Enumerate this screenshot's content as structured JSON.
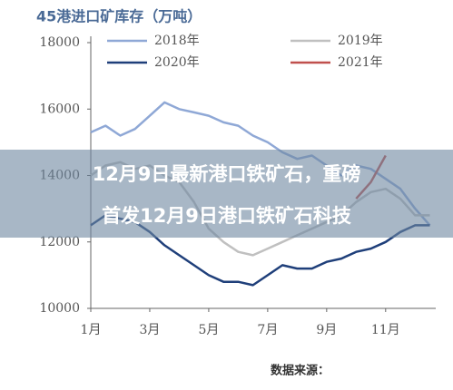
{
  "chart_data": {
    "type": "line",
    "title": "45港进口矿库存（万吨）",
    "x": [
      1,
      1.5,
      2,
      2.5,
      3,
      3.5,
      4,
      4.5,
      5,
      5.5,
      6,
      6.5,
      7,
      7.5,
      8,
      8.5,
      9,
      9.5,
      10,
      10.5,
      11,
      11.5,
      12,
      12.5
    ],
    "series": [
      {
        "name": "2018年",
        "color": "#8fa8d6",
        "values": [
          15300,
          15500,
          15200,
          15400,
          15800,
          16200,
          16000,
          15900,
          15800,
          15600,
          15500,
          15200,
          15000,
          14700,
          14500,
          14600,
          14300,
          14000,
          14300,
          14200,
          13900,
          13600,
          13000,
          12500
        ]
      },
      {
        "name": "2019年",
        "color": "#c0c0c0",
        "values": [
          14000,
          14300,
          14400,
          14200,
          14300,
          14000,
          13800,
          13200,
          12400,
          12000,
          11700,
          11600,
          11800,
          12000,
          12200,
          12400,
          12600,
          12800,
          13200,
          13500,
          13600,
          13300,
          12800,
          12800
        ]
      },
      {
        "name": "2020年",
        "color": "#1f3f7a",
        "values": [
          12500,
          12800,
          12700,
          12600,
          12300,
          11900,
          11600,
          11300,
          11000,
          10800,
          10800,
          10700,
          11000,
          11300,
          11200,
          11200,
          11400,
          11500,
          11700,
          11800,
          12000,
          12300,
          12500,
          12500
        ]
      },
      {
        "name": "2021年",
        "color": "#c0504d",
        "values": [
          null,
          null,
          null,
          null,
          null,
          null,
          null,
          null,
          null,
          null,
          null,
          null,
          null,
          null,
          null,
          null,
          null,
          null,
          13300,
          13800,
          14600,
          null,
          null,
          null
        ]
      }
    ],
    "xlim": [
      1,
      12.7
    ],
    "xticks": [
      {
        "value": 1,
        "label": "1月"
      },
      {
        "value": 3,
        "label": "3月"
      },
      {
        "value": 5,
        "label": "5月"
      },
      {
        "value": 7,
        "label": "7月"
      },
      {
        "value": 9,
        "label": "9月"
      },
      {
        "value": 11,
        "label": "11月"
      }
    ],
    "ylim": [
      10000,
      18000
    ],
    "yticks": [
      10000,
      12000,
      14000,
      16000,
      18000
    ],
    "grid": false
  },
  "banner": {
    "lines": [
      "12月9日最新港口铁矿石，重磅",
      "首发12月9日港口铁矿石科技"
    ]
  },
  "footer": {
    "source": "数据来源："
  }
}
